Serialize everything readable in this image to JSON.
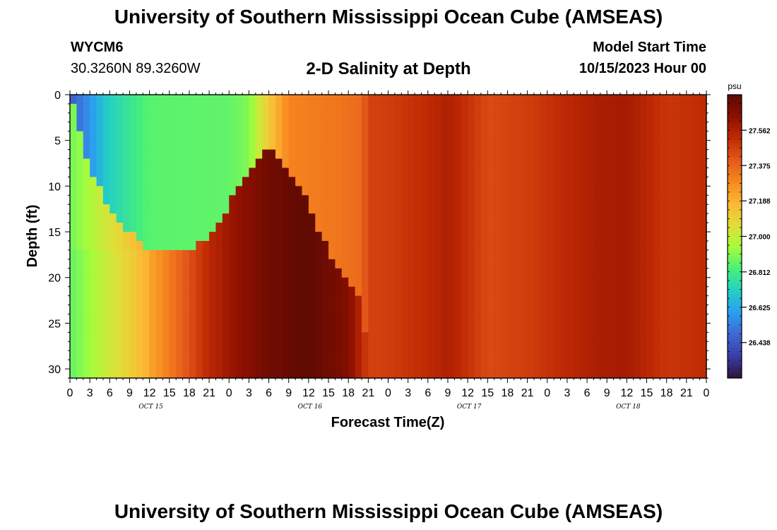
{
  "header": {
    "title": "University of Southern Mississippi Ocean Cube (AMSEAS)",
    "station": "WYCM6",
    "coords": "30.3260N  89.3260W",
    "subtitle": "2-D Salinity at Depth",
    "model_start_label": "Model Start Time",
    "model_start_value": "10/15/2023 Hour 00",
    "footer_title": "University of Southern Mississippi Ocean Cube (AMSEAS)"
  },
  "chart_data": {
    "type": "heatmap",
    "title": "2-D Salinity at Depth",
    "xlabel": "Forecast Time(Z)",
    "ylabel": "Depth (ft)",
    "x_tick_labels": [
      "0",
      "3",
      "6",
      "9",
      "12",
      "15",
      "18",
      "21",
      "0",
      "3",
      "6",
      "9",
      "12",
      "15",
      "18",
      "21",
      "0",
      "3",
      "6",
      "9",
      "12",
      "15",
      "18",
      "21",
      "0",
      "3",
      "6",
      "9",
      "12",
      "15",
      "18",
      "21",
      "0"
    ],
    "date_labels": [
      {
        "label": "OCT 15",
        "hour": 12
      },
      {
        "label": "OCT 16",
        "hour": 36
      },
      {
        "label": "OCT 17",
        "hour": 60
      },
      {
        "label": "OCT 18",
        "hour": 84
      }
    ],
    "xlim": [
      0,
      96
    ],
    "ylim": [
      0,
      31
    ],
    "y_ticks": [
      0,
      5,
      10,
      15,
      20,
      25,
      30
    ],
    "colorbar": {
      "unit": "psu",
      "range": [
        26.25,
        27.75
      ],
      "tick_values": [
        26.438,
        26.625,
        26.812,
        27.0,
        27.188,
        27.375,
        27.562
      ],
      "tick_labels": [
        "26.438",
        "26.625",
        "26.812",
        "27.000",
        "27.188",
        "27.375",
        "27.562"
      ],
      "colors": [
        "#30123b",
        "#3a3da8",
        "#4167d4",
        "#2b9ef0",
        "#23d0c4",
        "#47f07a",
        "#a4fc3c",
        "#e1dd37",
        "#fbb835",
        "#f7881f",
        "#e4581a",
        "#c02a04",
        "#8e0f01",
        "#5a0a02"
      ]
    },
    "time_profile_psu": [
      {
        "hour": 0,
        "value": 26.88
      },
      {
        "hour": 9,
        "value": 27.12
      },
      {
        "hour": 15,
        "value": 27.32
      },
      {
        "hour": 21,
        "value": 27.53
      },
      {
        "hour": 25,
        "value": 27.62
      },
      {
        "hour": 30,
        "value": 27.7
      },
      {
        "hour": 36,
        "value": 27.74
      },
      {
        "hour": 42,
        "value": 27.66
      },
      {
        "hour": 45,
        "value": 27.46
      },
      {
        "hour": 48,
        "value": 27.47
      },
      {
        "hour": 54,
        "value": 27.52
      },
      {
        "hour": 57,
        "value": 27.56
      },
      {
        "hour": 63,
        "value": 27.44
      },
      {
        "hour": 69,
        "value": 27.47
      },
      {
        "hour": 75,
        "value": 27.53
      },
      {
        "hour": 80,
        "value": 27.57
      },
      {
        "hour": 84,
        "value": 27.58
      },
      {
        "hour": 90,
        "value": 27.49
      },
      {
        "hour": 96,
        "value": 27.52
      }
    ],
    "surface_layer_psu": [
      {
        "hour": 0,
        "value": 26.44
      },
      {
        "hour": 6,
        "value": 26.72
      },
      {
        "hour": 12,
        "value": 26.85
      },
      {
        "hour": 24,
        "value": 26.86
      },
      {
        "hour": 27,
        "value": 26.9
      },
      {
        "hour": 30,
        "value": 27.12
      },
      {
        "hour": 33,
        "value": 27.3
      },
      {
        "hour": 40,
        "value": 27.33
      },
      {
        "hour": 44,
        "value": 27.36
      },
      {
        "hour": 45,
        "value": 27.46
      }
    ],
    "layer_depth_ft": [
      {
        "hour": 0,
        "value": 0
      },
      {
        "hour": 3,
        "value": 8
      },
      {
        "hour": 6,
        "value": 13
      },
      {
        "hour": 12,
        "value": 17
      },
      {
        "hour": 18,
        "value": 17
      },
      {
        "hour": 21,
        "value": 16
      },
      {
        "hour": 24,
        "value": 12
      },
      {
        "hour": 27,
        "value": 8
      },
      {
        "hour": 30,
        "value": 6
      },
      {
        "hour": 32,
        "value": 8
      },
      {
        "hour": 36,
        "value": 12
      },
      {
        "hour": 40,
        "value": 19
      },
      {
        "hour": 42,
        "value": 21
      },
      {
        "hour": 44,
        "value": 22
      },
      {
        "hour": 45,
        "value": 31
      }
    ]
  }
}
